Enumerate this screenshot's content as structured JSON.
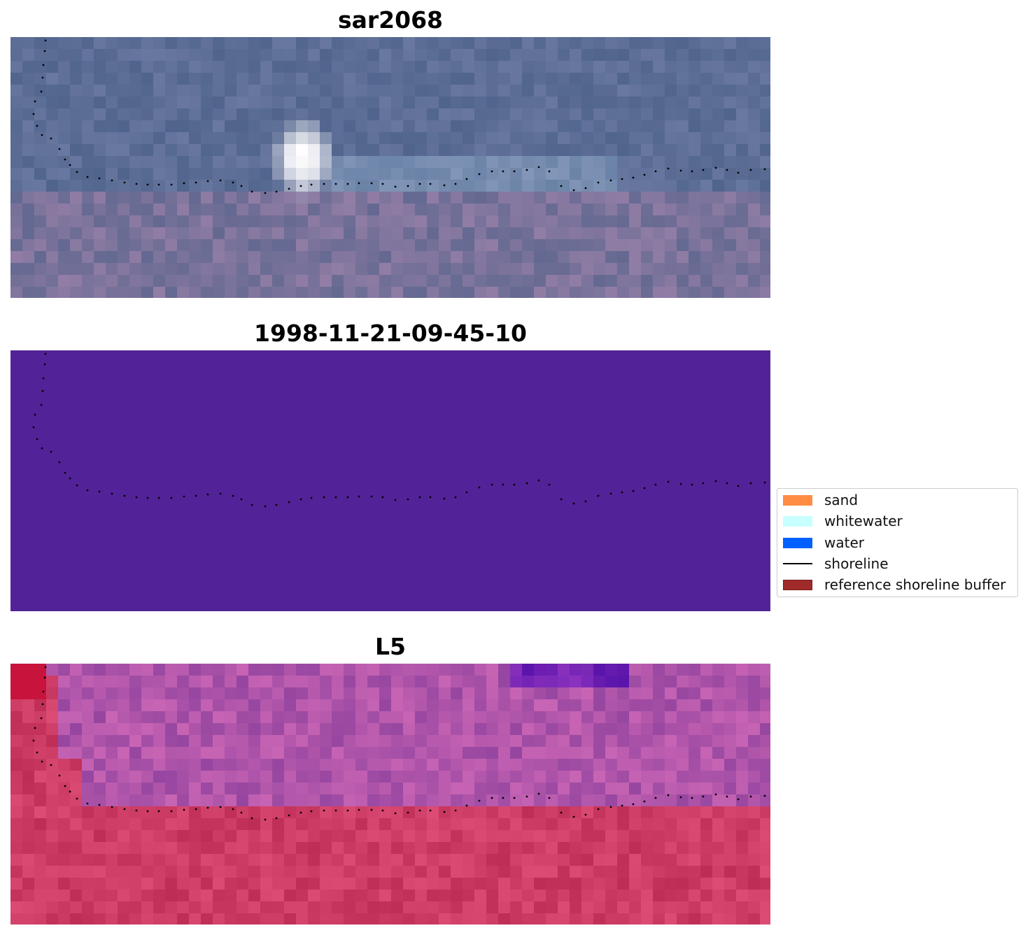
{
  "panels": [
    {
      "title": "sar2068",
      "kind": "rgb"
    },
    {
      "title": "1998-11-21-09-45-10",
      "kind": "classified",
      "fill": "#522398"
    },
    {
      "title": "L5",
      "kind": "falsecolor"
    }
  ],
  "legend": {
    "items": [
      {
        "label": "sand",
        "type": "patch",
        "color": "#ff8c42"
      },
      {
        "label": "whitewater",
        "type": "patch",
        "color": "#c8ffff"
      },
      {
        "label": "water",
        "type": "patch",
        "color": "#0060ff"
      },
      {
        "label": "shoreline",
        "type": "line",
        "color": "#000000"
      },
      {
        "label": "reference shoreline buffer",
        "type": "patch",
        "color": "#a02a2a",
        "edge": "#7a1c1c"
      }
    ]
  }
}
